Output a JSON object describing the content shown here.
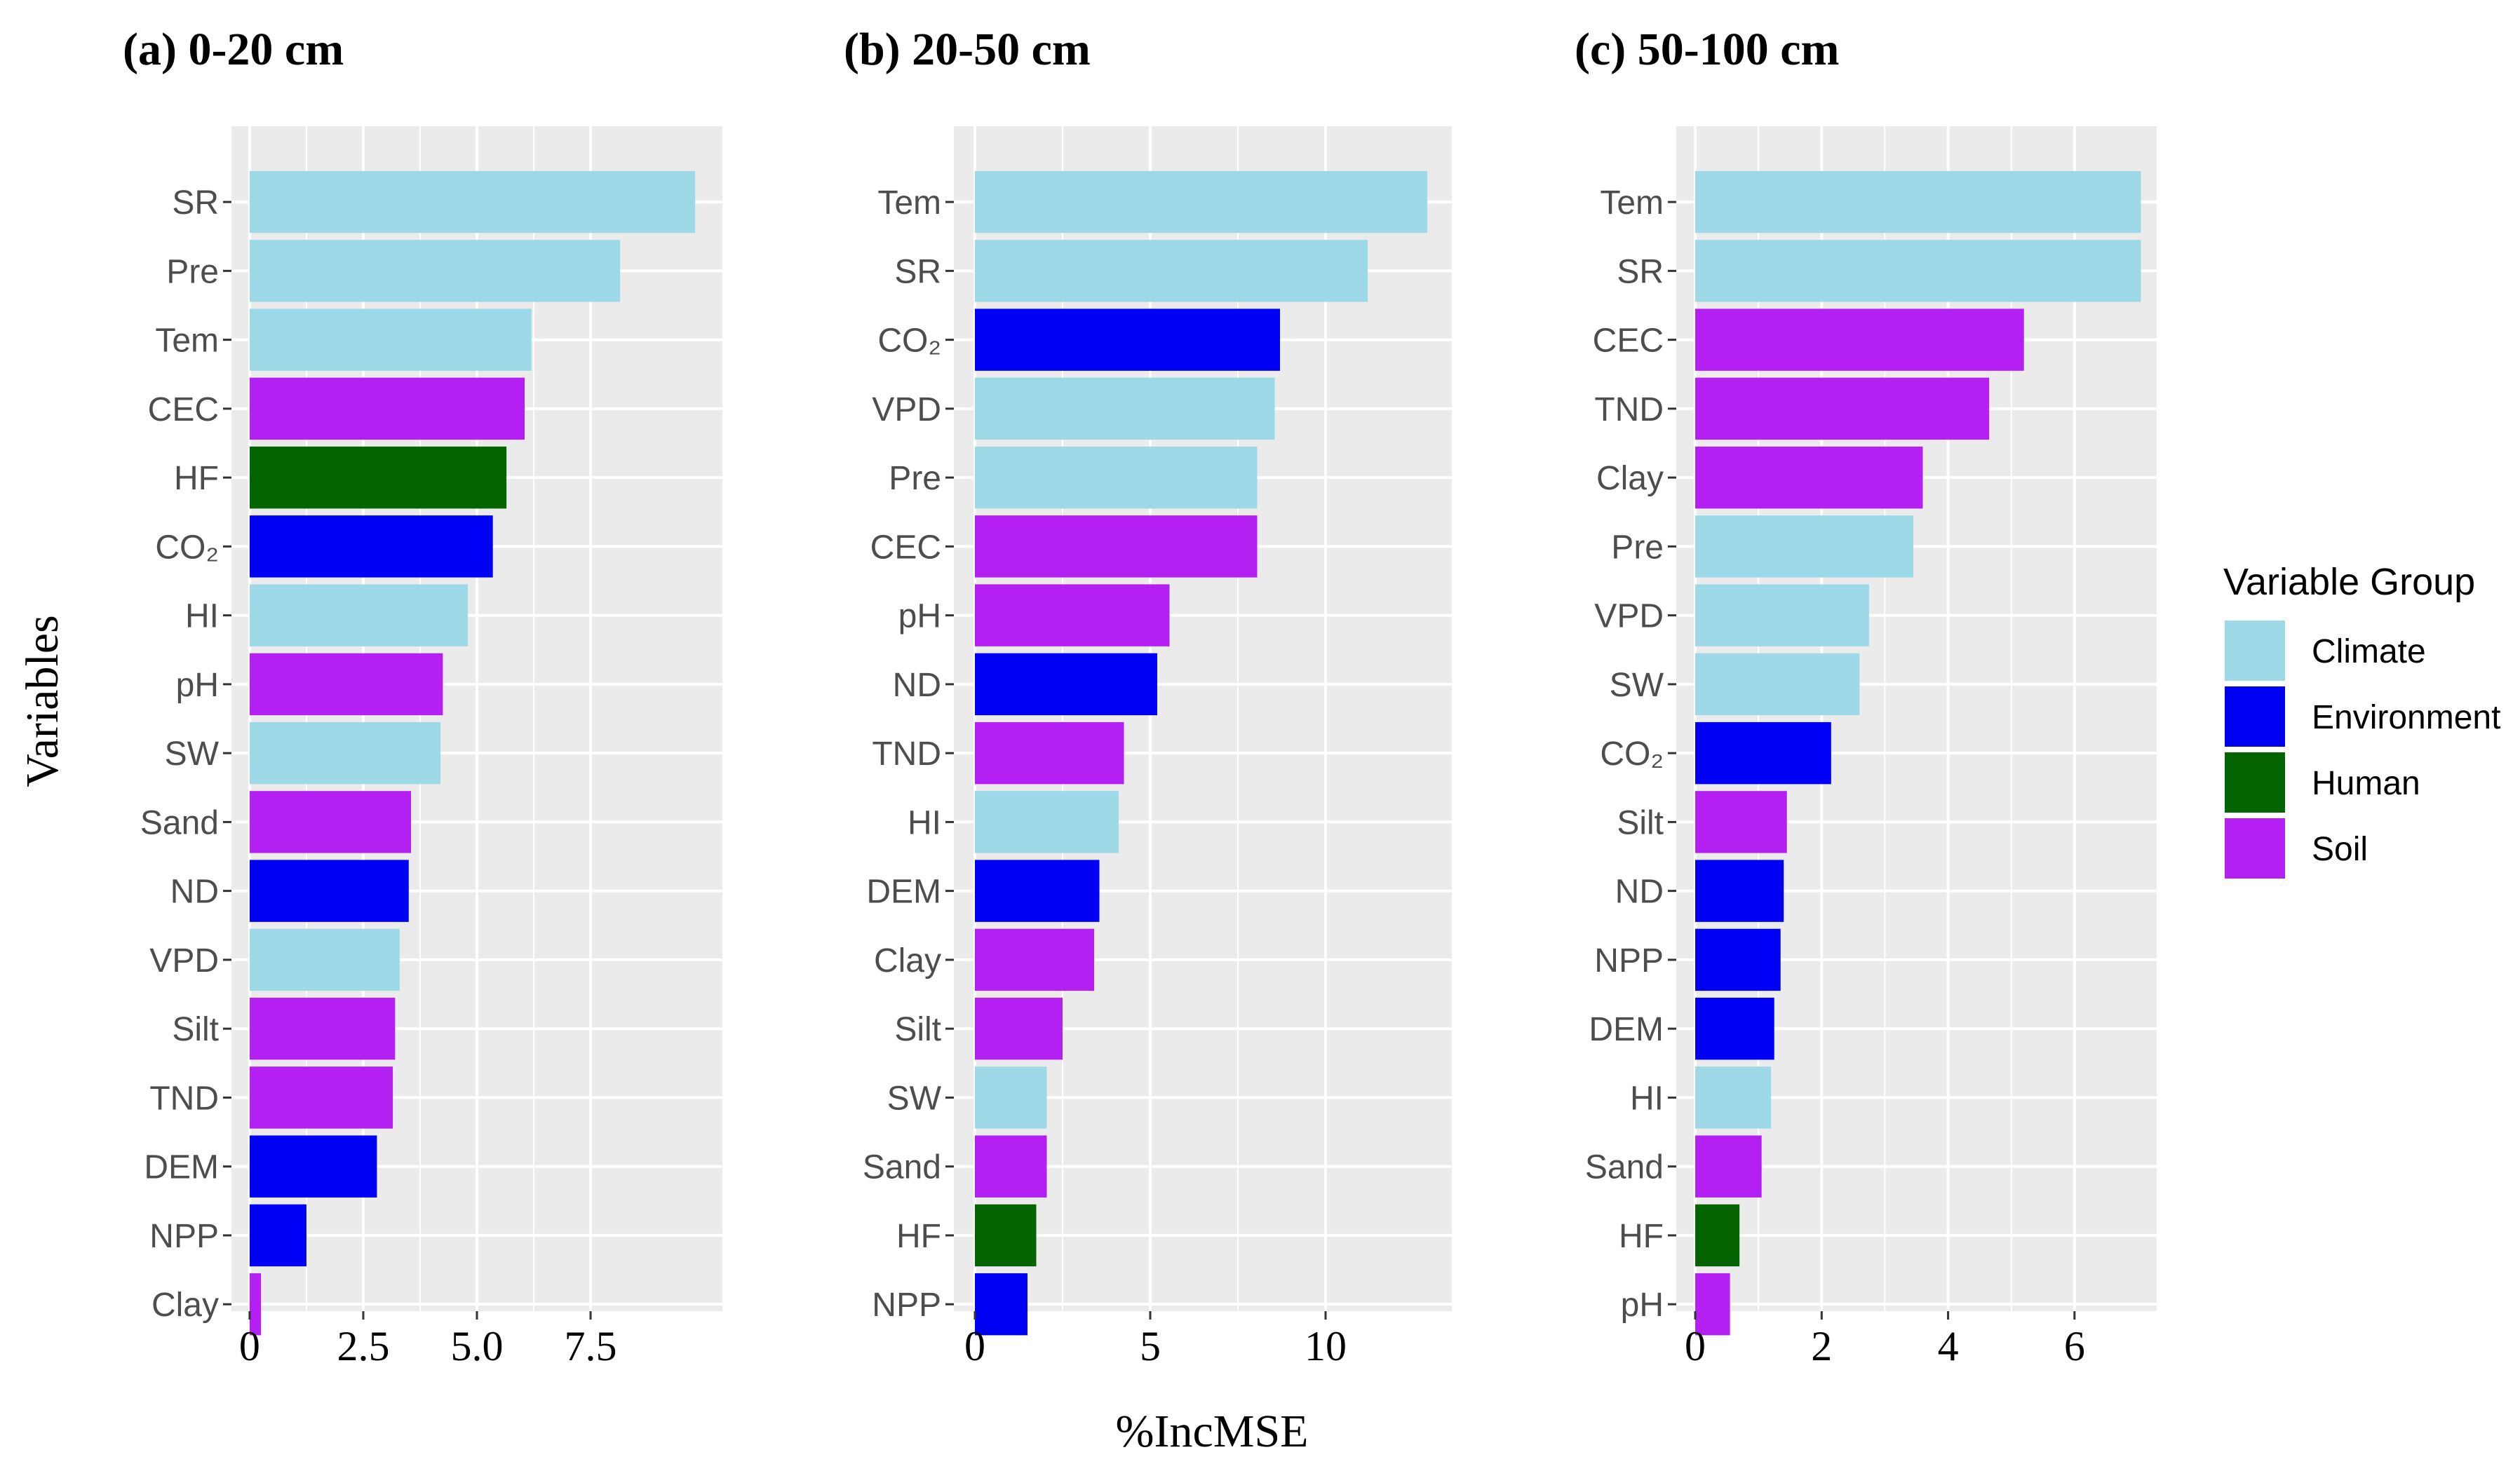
{
  "chart_data": [
    {
      "type": "bar",
      "orientation": "horizontal",
      "title": "(a) 0-20 cm",
      "xlabel": "%IncMSE",
      "ylabel": "Variables",
      "xlim": [
        -0.4,
        10.4
      ],
      "xticks": [
        0,
        2.5,
        5.0,
        7.5
      ],
      "xtick_labels": [
        "0",
        "2.5",
        "5.0",
        "7.5"
      ],
      "grid": true,
      "categories": [
        "SR",
        "Pre",
        "Tem",
        "CEC",
        "HF",
        "CO₂",
        "HI",
        "pH",
        "SW",
        "Sand",
        "ND",
        "VPD",
        "Silt",
        "TND",
        "DEM",
        "NPP",
        "Clay"
      ],
      "values": [
        9.8,
        8.15,
        6.2,
        6.05,
        5.65,
        5.35,
        4.8,
        4.25,
        4.2,
        3.55,
        3.5,
        3.3,
        3.2,
        3.15,
        2.8,
        1.25,
        0.25
      ],
      "groups": [
        "Climate",
        "Climate",
        "Climate",
        "Soil",
        "Human",
        "Environment",
        "Climate",
        "Soil",
        "Climate",
        "Soil",
        "Environment",
        "Climate",
        "Soil",
        "Soil",
        "Environment",
        "Environment",
        "Soil"
      ]
    },
    {
      "type": "bar",
      "orientation": "horizontal",
      "title": "(b) 20-50 cm",
      "xlabel": "%IncMSE",
      "ylabel": "",
      "xlim": [
        -0.6,
        13.6
      ],
      "xticks": [
        0,
        5,
        10
      ],
      "xtick_labels": [
        "0",
        "5",
        "10"
      ],
      "grid": true,
      "categories": [
        "Tem",
        "SR",
        "CO₂",
        "VPD",
        "Pre",
        "CEC",
        "pH",
        "ND",
        "TND",
        "HI",
        "DEM",
        "Clay",
        "Silt",
        "SW",
        "Sand",
        "HF",
        "NPP"
      ],
      "values": [
        12.9,
        11.2,
        8.7,
        8.55,
        8.05,
        8.05,
        5.55,
        5.2,
        4.25,
        4.1,
        3.55,
        3.4,
        2.5,
        2.05,
        2.05,
        1.75,
        1.5
      ],
      "groups": [
        "Climate",
        "Climate",
        "Environment",
        "Climate",
        "Climate",
        "Soil",
        "Soil",
        "Environment",
        "Soil",
        "Climate",
        "Environment",
        "Soil",
        "Soil",
        "Climate",
        "Soil",
        "Human",
        "Environment"
      ]
    },
    {
      "type": "bar",
      "orientation": "horizontal",
      "title": "(c) 50-100 cm",
      "xlabel": "",
      "ylabel": "",
      "xlim": [
        -0.3,
        7.3
      ],
      "xticks": [
        0,
        2,
        4,
        6
      ],
      "xtick_labels": [
        "0",
        "2",
        "4",
        "6"
      ],
      "grid": true,
      "categories": [
        "Tem",
        "SR",
        "CEC",
        "TND",
        "Clay",
        "Pre",
        "VPD",
        "SW",
        "CO₂",
        "Silt",
        "ND",
        "NPP",
        "DEM",
        "HI",
        "Sand",
        "HF",
        "pH"
      ],
      "values": [
        7.05,
        7.05,
        5.2,
        4.65,
        3.6,
        3.45,
        2.75,
        2.6,
        2.15,
        1.45,
        1.4,
        1.35,
        1.25,
        1.2,
        1.05,
        0.7,
        0.55
      ],
      "groups": [
        "Climate",
        "Climate",
        "Soil",
        "Soil",
        "Soil",
        "Climate",
        "Climate",
        "Climate",
        "Environment",
        "Soil",
        "Environment",
        "Environment",
        "Environment",
        "Climate",
        "Soil",
        "Human",
        "Soil"
      ]
    }
  ],
  "axis_title_y": "Variables",
  "axis_title_x": "%IncMSE",
  "legend": {
    "title": "Variable Group",
    "items": [
      {
        "label": "Climate",
        "color": "#9dd9e7"
      },
      {
        "label": "Environment",
        "color": "#0000f5"
      },
      {
        "label": "Human",
        "color": "#036400"
      },
      {
        "label": "Soil",
        "color": "#b41ff2"
      }
    ]
  },
  "colors": {
    "panel_bg": "#ebebeb",
    "grid": "#ffffff",
    "tick_text": "#4d4d4d"
  }
}
